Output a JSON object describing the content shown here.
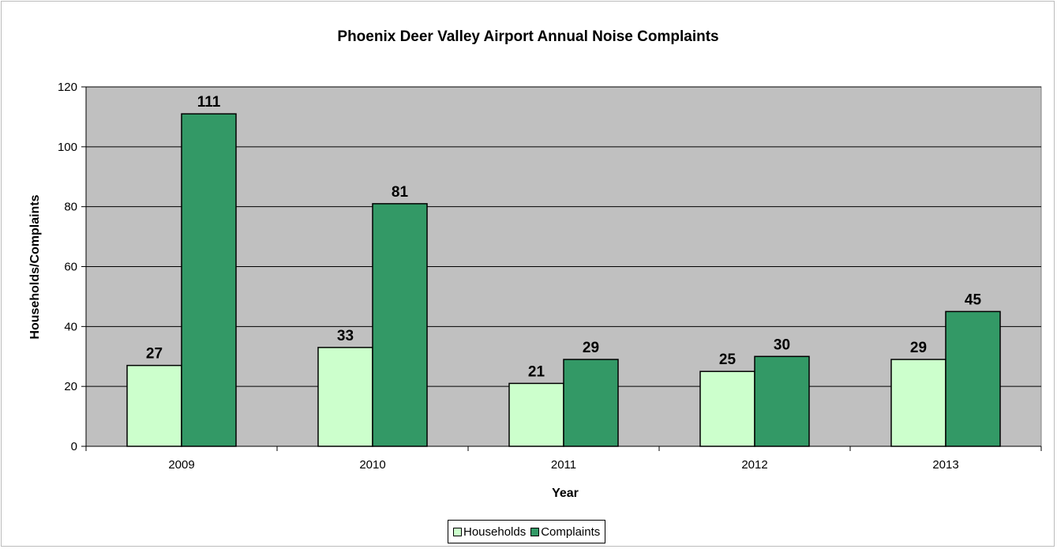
{
  "chart_data": {
    "type": "bar",
    "title": "Phoenix Deer Valley Airport Annual Noise Complaints",
    "xlabel": "Year",
    "ylabel": "Households/Complaints",
    "categories": [
      "2009",
      "2010",
      "2011",
      "2012",
      "2013"
    ],
    "series": [
      {
        "name": "Households",
        "values": [
          27,
          33,
          21,
          25,
          29
        ],
        "color": "#ccffcc"
      },
      {
        "name": "Complaints",
        "values": [
          111,
          81,
          29,
          30,
          45
        ],
        "color": "#339966"
      }
    ],
    "ylim": [
      0,
      120
    ],
    "yticks": [
      0,
      20,
      40,
      60,
      80,
      100,
      120
    ],
    "grid": true,
    "plot_background": "#c0c0c0",
    "legend": "bottom",
    "data_labels": true
  }
}
